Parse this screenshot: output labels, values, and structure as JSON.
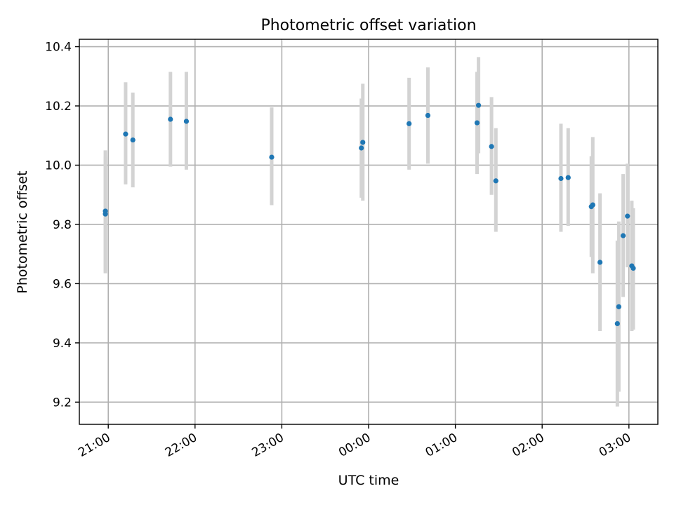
{
  "chart_data": {
    "type": "scatter",
    "title": "Photometric offset variation",
    "xlabel": "UTC time",
    "ylabel": "Photometric offset",
    "x_start": "20:40",
    "x_end": "03:20",
    "ylim": [
      9.125,
      10.425
    ],
    "yticks": [
      9.2,
      9.4,
      9.6,
      9.8,
      10.0,
      10.2,
      10.4
    ],
    "xticks": [
      "21:00",
      "22:00",
      "23:00",
      "00:00",
      "01:00",
      "02:00",
      "03:00"
    ],
    "grid": true,
    "point_color": "#1f77b4",
    "errorbar_color": "#d3d3d3",
    "points": [
      {
        "x": "20:58",
        "y": 9.835,
        "low": 9.635,
        "high": 10.03
      },
      {
        "x": "20:58",
        "y": 9.845,
        "low": 9.64,
        "high": 10.05
      },
      {
        "x": "21:12",
        "y": 10.105,
        "low": 9.935,
        "high": 10.28
      },
      {
        "x": "21:17",
        "y": 10.085,
        "low": 9.925,
        "high": 10.245
      },
      {
        "x": "21:43",
        "y": 10.155,
        "low": 9.995,
        "high": 10.315
      },
      {
        "x": "21:54",
        "y": 10.148,
        "low": 9.985,
        "high": 10.315
      },
      {
        "x": "22:53",
        "y": 10.027,
        "low": 9.865,
        "high": 10.195
      },
      {
        "x": "23:55",
        "y": 10.058,
        "low": 9.89,
        "high": 10.225
      },
      {
        "x": "23:56",
        "y": 10.077,
        "low": 9.88,
        "high": 10.275
      },
      {
        "x": "00:28",
        "y": 10.14,
        "low": 9.985,
        "high": 10.295
      },
      {
        "x": "00:41",
        "y": 10.168,
        "low": 10.005,
        "high": 10.33
      },
      {
        "x": "01:15",
        "y": 10.143,
        "low": 9.97,
        "high": 10.315
      },
      {
        "x": "01:16",
        "y": 10.202,
        "low": 10.04,
        "high": 10.365
      },
      {
        "x": "01:25",
        "y": 10.063,
        "low": 9.9,
        "high": 10.23
      },
      {
        "x": "01:28",
        "y": 9.947,
        "low": 9.775,
        "high": 10.125
      },
      {
        "x": "02:13",
        "y": 9.955,
        "low": 9.775,
        "high": 10.14
      },
      {
        "x": "02:18",
        "y": 9.958,
        "low": 9.795,
        "high": 10.125
      },
      {
        "x": "02:34",
        "y": 9.86,
        "low": 9.69,
        "high": 10.03
      },
      {
        "x": "02:35",
        "y": 9.866,
        "low": 9.635,
        "high": 10.095
      },
      {
        "x": "02:40",
        "y": 9.672,
        "low": 9.44,
        "high": 9.905
      },
      {
        "x": "02:52",
        "y": 9.465,
        "low": 9.185,
        "high": 9.745
      },
      {
        "x": "02:53",
        "y": 9.522,
        "low": 9.235,
        "high": 9.81
      },
      {
        "x": "02:56",
        "y": 9.762,
        "low": 9.555,
        "high": 9.97
      },
      {
        "x": "02:59",
        "y": 9.828,
        "low": 9.655,
        "high": 10.005
      },
      {
        "x": "03:02",
        "y": 9.66,
        "low": 9.44,
        "high": 9.88
      },
      {
        "x": "03:03",
        "y": 9.652,
        "low": 9.445,
        "high": 9.855
      }
    ]
  }
}
